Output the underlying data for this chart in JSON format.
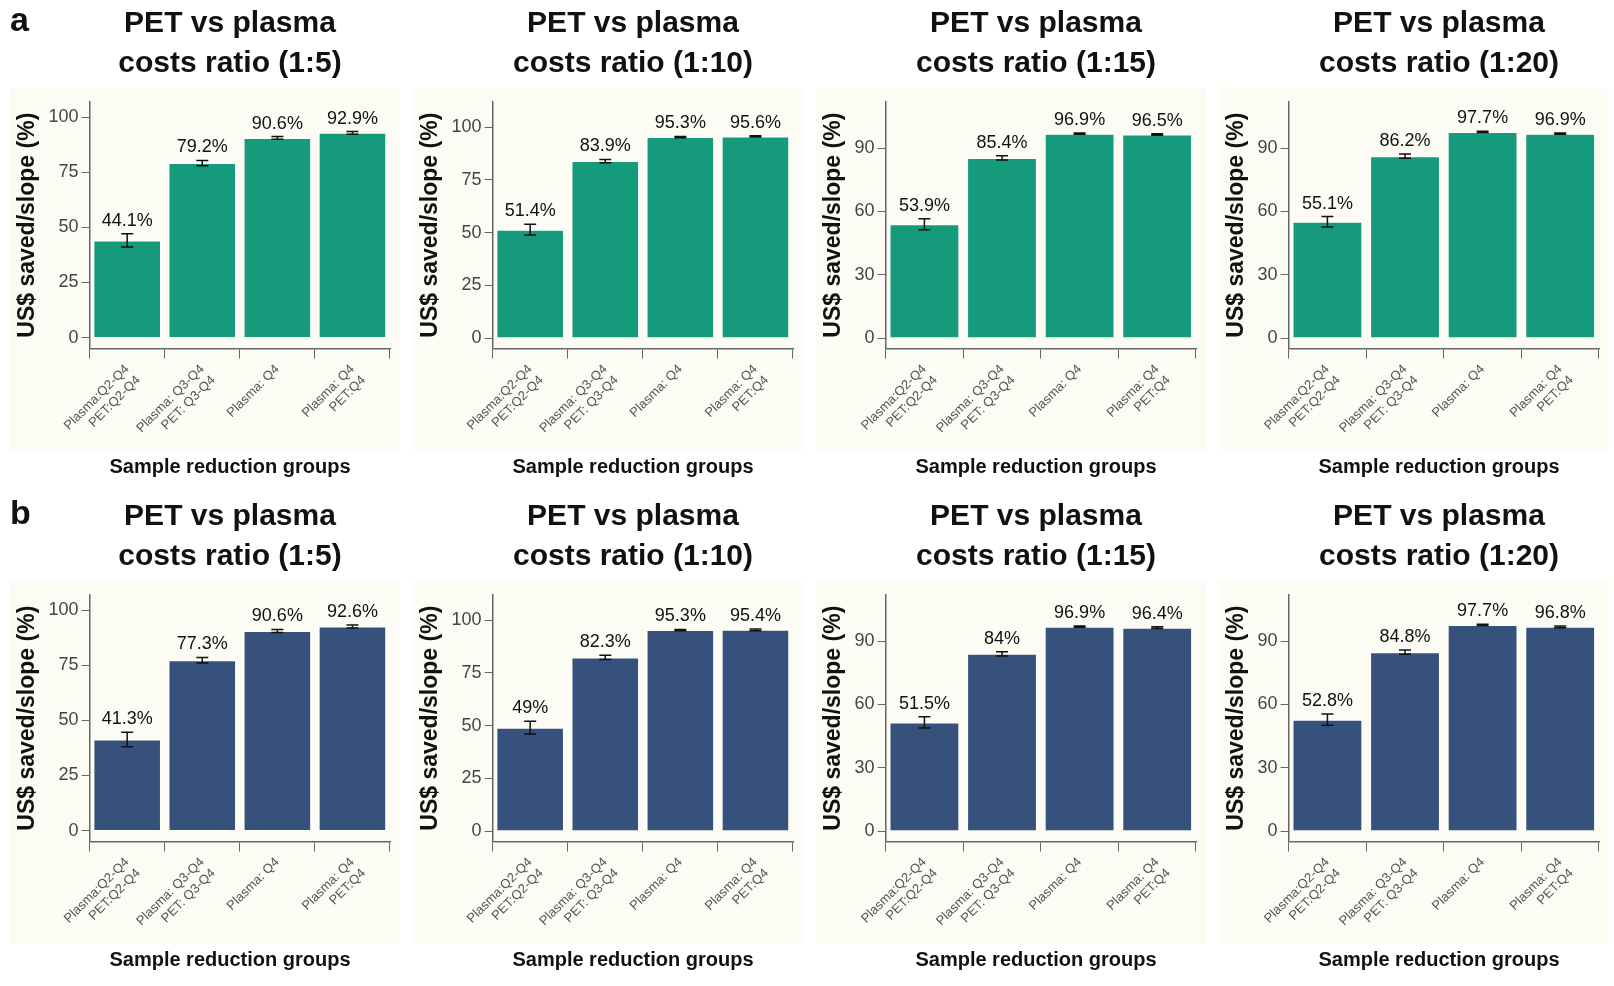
{
  "chart_data": [
    {
      "type": "bar",
      "title": "PET vs plasma costs ratio (1:5)",
      "annotations": [
        "a"
      ],
      "xlabel": "Sample reduction groups",
      "ylabel": "US$ saved/slope (%)",
      "categories": [
        "Plasma:Q2-Q4\nPET:Q2-Q4",
        "Plasma: Q3-Q4\nPET: Q3-Q4",
        "Plasma: Q4",
        "Plasma: Q4\nPET:Q4"
      ],
      "color": "#159a7b",
      "values": [
        44.1,
        79.2,
        90.6,
        92.9
      ],
      "errors": [
        3,
        1.2,
        0.6,
        0.6
      ],
      "value_labels": [
        "44.1%",
        "79.2%",
        "90.6%",
        "92.9%"
      ],
      "ylim": [
        -5,
        107
      ],
      "yticks": [
        0,
        25,
        50,
        75,
        100
      ]
    },
    {
      "type": "bar",
      "title": "PET vs plasma costs ratio (1:10)",
      "xlabel": "Sample reduction groups",
      "ylabel": "US$ saved/slope (%)",
      "categories": [
        "Plasma:Q2-Q4\nPET:Q2-Q4",
        "Plasma: Q3-Q4\nPET: Q3-Q4",
        "Plasma: Q4",
        "Plasma: Q4\nPET:Q4"
      ],
      "color": "#159a7b",
      "values": [
        51.4,
        83.9,
        95.3,
        95.6
      ],
      "errors": [
        2.5,
        0.8,
        0.3,
        0.3
      ],
      "value_labels": [
        "51.4%",
        "83.9%",
        "95.3%",
        "95.6%"
      ],
      "ylim": [
        -5,
        112
      ],
      "yticks": [
        0,
        25,
        50,
        75,
        100
      ]
    },
    {
      "type": "bar",
      "title": "PET vs plasma costs ratio (1:15)",
      "xlabel": "Sample reduction groups",
      "ylabel": "US$ saved/slope (%)",
      "categories": [
        "Plasma:Q2-Q4\nPET:Q2-Q4",
        "Plasma: Q3-Q4\nPET: Q3-Q4",
        "Plasma: Q4",
        "Plasma: Q4\nPET:Q4"
      ],
      "color": "#159a7b",
      "values": [
        53.9,
        85.4,
        96.9,
        96.5
      ],
      "errors": [
        2.6,
        1,
        0.3,
        0.3
      ],
      "value_labels": [
        "53.9%",
        "85.4%",
        "96.9%",
        "96.5%"
      ],
      "ylim": [
        -5,
        112
      ],
      "yticks": [
        0,
        30,
        60,
        90
      ]
    },
    {
      "type": "bar",
      "title": "PET vs plasma costs ratio (1:20)",
      "xlabel": "Sample reduction groups",
      "ylabel": "US$ saved/slope (%)",
      "categories": [
        "Plasma:Q2-Q4\nPET:Q2-Q4",
        "Plasma: Q3-Q4\nPET: Q3-Q4",
        "Plasma: Q4",
        "Plasma: Q4\nPET:Q4"
      ],
      "color": "#159a7b",
      "values": [
        55.1,
        86.2,
        97.7,
        96.9
      ],
      "errors": [
        2.5,
        1,
        0.3,
        0.3
      ],
      "value_labels": [
        "55.1%",
        "86.2%",
        "97.7%",
        "96.9%"
      ],
      "ylim": [
        -5,
        112
      ],
      "yticks": [
        0,
        30,
        60,
        90
      ]
    },
    {
      "type": "bar",
      "title": "PET vs plasma costs ratio (1:5)",
      "annotations": [
        "b"
      ],
      "xlabel": "Sample reduction groups",
      "ylabel": "US$ saved/slope (%)",
      "categories": [
        "Plasma:Q2-Q4\nPET:Q2-Q4",
        "Plasma: Q3-Q4\nPET: Q3-Q4",
        "Plasma: Q4",
        "Plasma: Q4\nPET:Q4"
      ],
      "color": "#36527c",
      "values": [
        41.3,
        77.3,
        90.6,
        92.6
      ],
      "errors": [
        3.3,
        1.3,
        0.7,
        0.7
      ],
      "value_labels": [
        "41.3%",
        "77.3%",
        "90.6%",
        "92.6%"
      ],
      "ylim": [
        -5,
        107
      ],
      "yticks": [
        0,
        25,
        50,
        75,
        100
      ]
    },
    {
      "type": "bar",
      "title": "PET vs plasma costs ratio (1:10)",
      "xlabel": "Sample reduction groups",
      "ylabel": "US$ saved/slope (%)",
      "categories": [
        "Plasma:Q2-Q4\nPET:Q2-Q4",
        "Plasma: Q3-Q4\nPET: Q3-Q4",
        "Plasma: Q4",
        "Plasma: Q4\nPET:Q4"
      ],
      "color": "#36527c",
      "values": [
        49,
        82.3,
        95.3,
        95.4
      ],
      "errors": [
        3,
        1,
        0.3,
        0.4
      ],
      "value_labels": [
        "49%",
        "82.3%",
        "95.3%",
        "95.4%"
      ],
      "ylim": [
        -5,
        112
      ],
      "yticks": [
        0,
        25,
        50,
        75,
        100
      ]
    },
    {
      "type": "bar",
      "title": "PET vs plasma costs ratio (1:15)",
      "xlabel": "Sample reduction groups",
      "ylabel": "US$ saved/slope (%)",
      "categories": [
        "Plasma:Q2-Q4\nPET:Q2-Q4",
        "Plasma: Q3-Q4\nPET: Q3-Q4",
        "Plasma: Q4",
        "Plasma: Q4\nPET:Q4"
      ],
      "color": "#36527c",
      "values": [
        51.5,
        84,
        96.9,
        96.4
      ],
      "errors": [
        2.7,
        1,
        0.3,
        0.4
      ],
      "value_labels": [
        "51.5%",
        "84%",
        "96.9%",
        "96.4%"
      ],
      "ylim": [
        -5,
        112
      ],
      "yticks": [
        0,
        30,
        60,
        90
      ]
    },
    {
      "type": "bar",
      "title": "PET vs plasma costs ratio (1:20)",
      "xlabel": "Sample reduction groups",
      "ylabel": "US$ saved/slope (%)",
      "categories": [
        "Plasma:Q2-Q4\nPET:Q2-Q4",
        "Plasma: Q3-Q4\nPET: Q3-Q4",
        "Plasma: Q4",
        "Plasma: Q4\nPET:Q4"
      ],
      "color": "#36527c",
      "values": [
        52.8,
        84.8,
        97.7,
        96.8
      ],
      "errors": [
        2.7,
        1,
        0.3,
        0.4
      ],
      "value_labels": [
        "52.8%",
        "84.8%",
        "97.7%",
        "96.8%"
      ],
      "ylim": [
        -5,
        112
      ],
      "yticks": [
        0,
        30,
        60,
        90
      ]
    }
  ]
}
